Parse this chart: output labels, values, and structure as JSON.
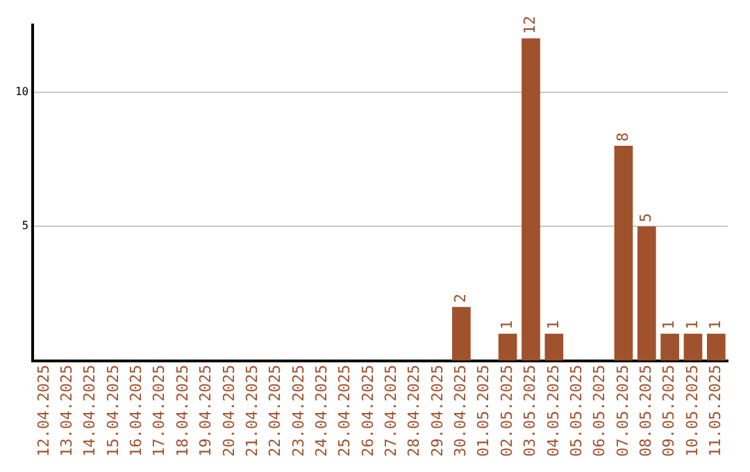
{
  "chart_data": {
    "type": "bar",
    "categories": [
      "12.04.2025",
      "13.04.2025",
      "14.04.2025",
      "15.04.2025",
      "16.04.2025",
      "17.04.2025",
      "18.04.2025",
      "19.04.2025",
      "20.04.2025",
      "21.04.2025",
      "22.04.2025",
      "23.04.2025",
      "24.04.2025",
      "25.04.2025",
      "26.04.2025",
      "27.04.2025",
      "28.04.2025",
      "29.04.2025",
      "30.04.2025",
      "01.05.2025",
      "02.05.2025",
      "03.05.2025",
      "04.05.2025",
      "05.05.2025",
      "06.05.2025",
      "07.05.2025",
      "08.05.2025",
      "09.05.2025",
      "10.05.2025",
      "11.05.2025"
    ],
    "values": [
      0,
      0,
      0,
      0,
      0,
      0,
      0,
      0,
      0,
      0,
      0,
      0,
      0,
      0,
      0,
      0,
      0,
      0,
      2,
      0,
      1,
      12,
      1,
      0,
      0,
      8,
      5,
      1,
      1,
      1
    ],
    "value_labels": [
      null,
      null,
      null,
      null,
      null,
      null,
      null,
      null,
      null,
      null,
      null,
      null,
      null,
      null,
      null,
      null,
      null,
      null,
      "2",
      null,
      "1",
      "12",
      "1",
      null,
      null,
      "8",
      "5",
      "1",
      "1",
      "1"
    ],
    "color": "#a0522d",
    "ylim": [
      0,
      12.5
    ],
    "yticks": [
      5,
      10
    ],
    "grid": "y",
    "legend": false
  }
}
